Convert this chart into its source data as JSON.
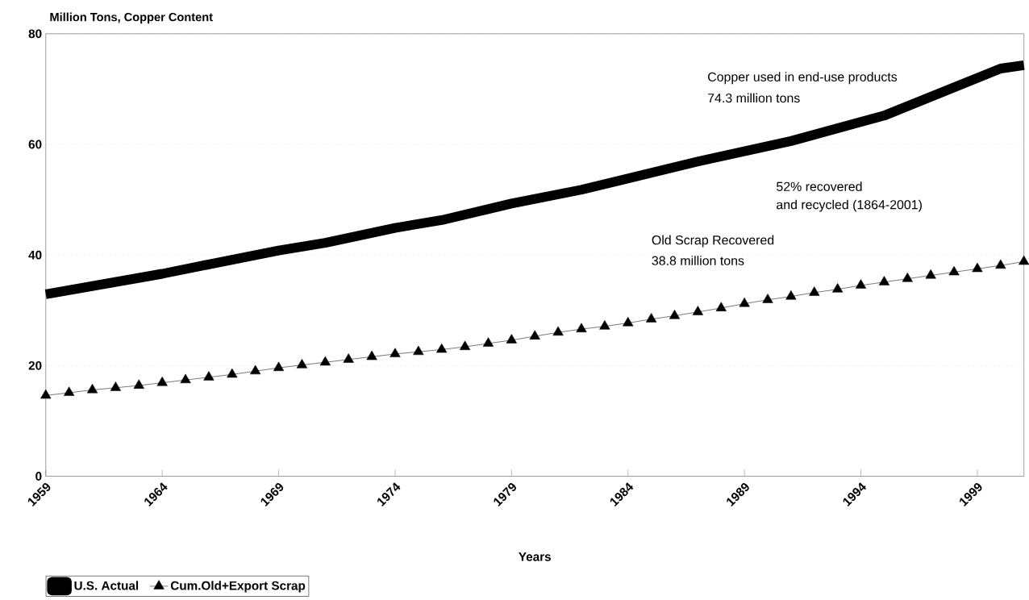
{
  "chart_data": {
    "type": "line",
    "xlabel": "Years",
    "ylabel": "Million Tons, Copper Content",
    "xlim": [
      1959,
      2001
    ],
    "xticks": [
      1959,
      1964,
      1969,
      1974,
      1979,
      1984,
      1989,
      1994,
      1999
    ],
    "ylim": [
      0,
      80
    ],
    "yticks": [
      0,
      20,
      40,
      60,
      80
    ],
    "grid": "y",
    "legend": "bottom left",
    "series": [
      {
        "name": "U.S. Actual",
        "color": "#000000",
        "marker": "none",
        "x": [
          1959,
          1964,
          1966,
          1969,
          1971,
          1974,
          1976,
          1979,
          1982,
          1987,
          1991,
          1995,
          2000,
          2001
        ],
        "values": [
          32.9,
          36.6,
          38.3,
          40.8,
          42.2,
          44.9,
          46.3,
          49.3,
          51.8,
          56.9,
          60.6,
          65.2,
          73.7,
          74.3
        ]
      },
      {
        "name": "Cum.Old+Export Scrap",
        "color": "#000000",
        "marker": "triangle",
        "x": [
          1959,
          1960,
          1961,
          1962,
          1963,
          1964,
          1965,
          1966,
          1967,
          1968,
          1969,
          1970,
          1971,
          1972,
          1973,
          1974,
          1975,
          1976,
          1977,
          1978,
          1979,
          1980,
          1981,
          1982,
          1983,
          1984,
          1985,
          1986,
          1987,
          1988,
          1989,
          1990,
          1991,
          1992,
          1993,
          1994,
          1995,
          1996,
          1997,
          1998,
          1999,
          2000,
          2001
        ],
        "values": [
          14.6,
          15.1,
          15.6,
          16.0,
          16.4,
          16.9,
          17.4,
          17.9,
          18.4,
          19.0,
          19.6,
          20.1,
          20.6,
          21.1,
          21.6,
          22.1,
          22.5,
          22.9,
          23.4,
          24.0,
          24.6,
          25.3,
          26.0,
          26.6,
          27.1,
          27.7,
          28.4,
          29.0,
          29.7,
          30.4,
          31.2,
          31.9,
          32.5,
          33.2,
          33.8,
          34.5,
          35.1,
          35.7,
          36.3,
          36.9,
          37.5,
          38.1,
          38.8
        ]
      }
    ],
    "annotations": [
      "Copper used in end-use products",
      "74.3 million tons",
      "52% recovered",
      "and recycled (1864-2001)",
      "Old Scrap Recovered",
      "38.8 million tons"
    ]
  }
}
